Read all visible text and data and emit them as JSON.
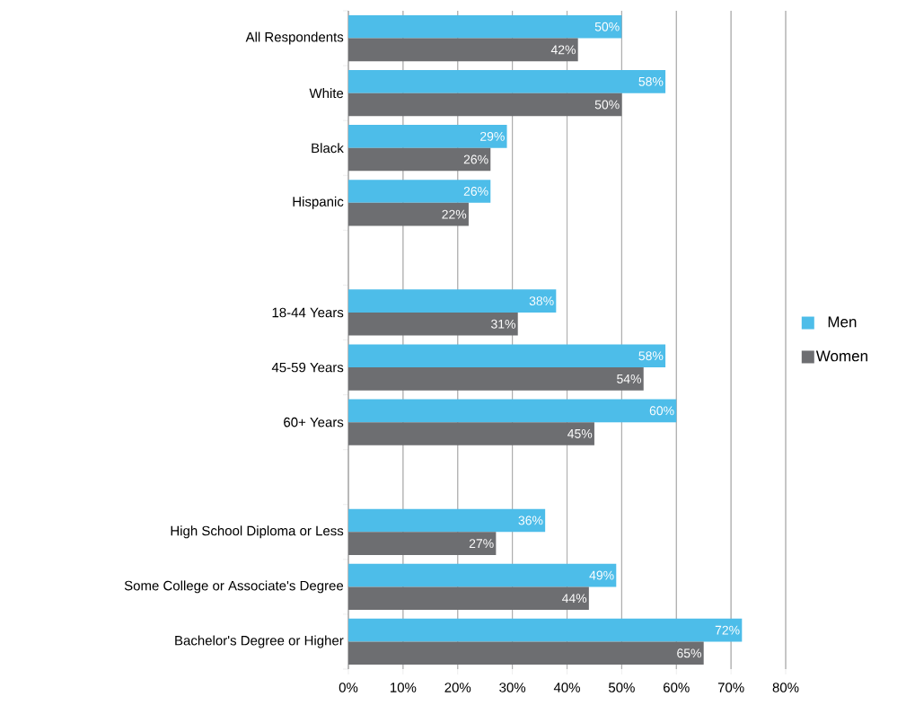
{
  "chart_data": {
    "type": "bar",
    "orientation": "horizontal",
    "categories": [
      "All Respondents",
      "White",
      "Black",
      "Hispanic",
      null,
      "18-44 Years",
      "45-59 Years",
      "60+ Years",
      null,
      "High School Diploma or Less",
      "Some College or Associate's Degree",
      "Bachelor's Degree or Higher"
    ],
    "series": [
      {
        "name": "Men",
        "color": "#4dbde9",
        "values": [
          50,
          58,
          29,
          26,
          null,
          38,
          58,
          60,
          null,
          36,
          49,
          72
        ],
        "value_labels": [
          "50%",
          "58%",
          "29%",
          "26%",
          null,
          "38%",
          "58%",
          "60%",
          null,
          "36%",
          "49%",
          "72%"
        ]
      },
      {
        "name": "Women",
        "color": "#6d6e71",
        "values": [
          42,
          50,
          26,
          22,
          null,
          31,
          54,
          45,
          null,
          27,
          44,
          65
        ],
        "value_labels": [
          "42%",
          "50%",
          "26%",
          "22%",
          null,
          "31%",
          "54%",
          "45%",
          null,
          "27%",
          "44%",
          "65%"
        ]
      }
    ],
    "xlim": [
      0,
      80
    ],
    "xticks": [
      {
        "value": 0,
        "label": "0%"
      },
      {
        "value": 10,
        "label": "10%"
      },
      {
        "value": 20,
        "label": "20%"
      },
      {
        "value": 30,
        "label": "30%"
      },
      {
        "value": 40,
        "label": "40%"
      },
      {
        "value": 50,
        "label": "50%"
      },
      {
        "value": 60,
        "label": "60%"
      },
      {
        "value": 70,
        "label": "70%"
      },
      {
        "value": 80,
        "label": "80%"
      }
    ],
    "grid": "x",
    "legend": "right"
  }
}
